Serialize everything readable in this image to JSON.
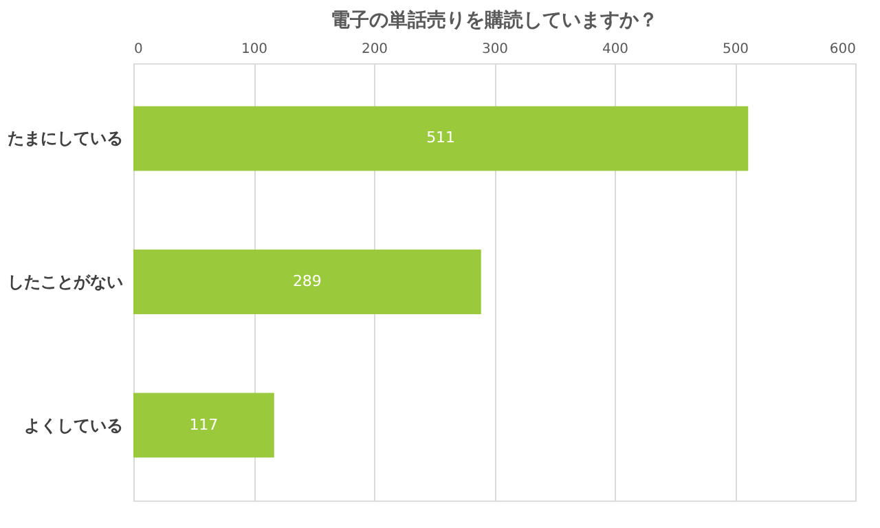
{
  "chart_data": {
    "type": "bar",
    "orientation": "horizontal",
    "title": "電子の単話売りを購読していますか？",
    "categories": [
      "たまにしている",
      "したことがない",
      "よくしている"
    ],
    "values": [
      511,
      289,
      117
    ],
    "color": "#9aca3c",
    "xlim": [
      0,
      600
    ],
    "xticks": [
      0,
      100,
      200,
      300,
      400,
      500,
      600
    ],
    "grid": "x",
    "data_labels": true
  }
}
